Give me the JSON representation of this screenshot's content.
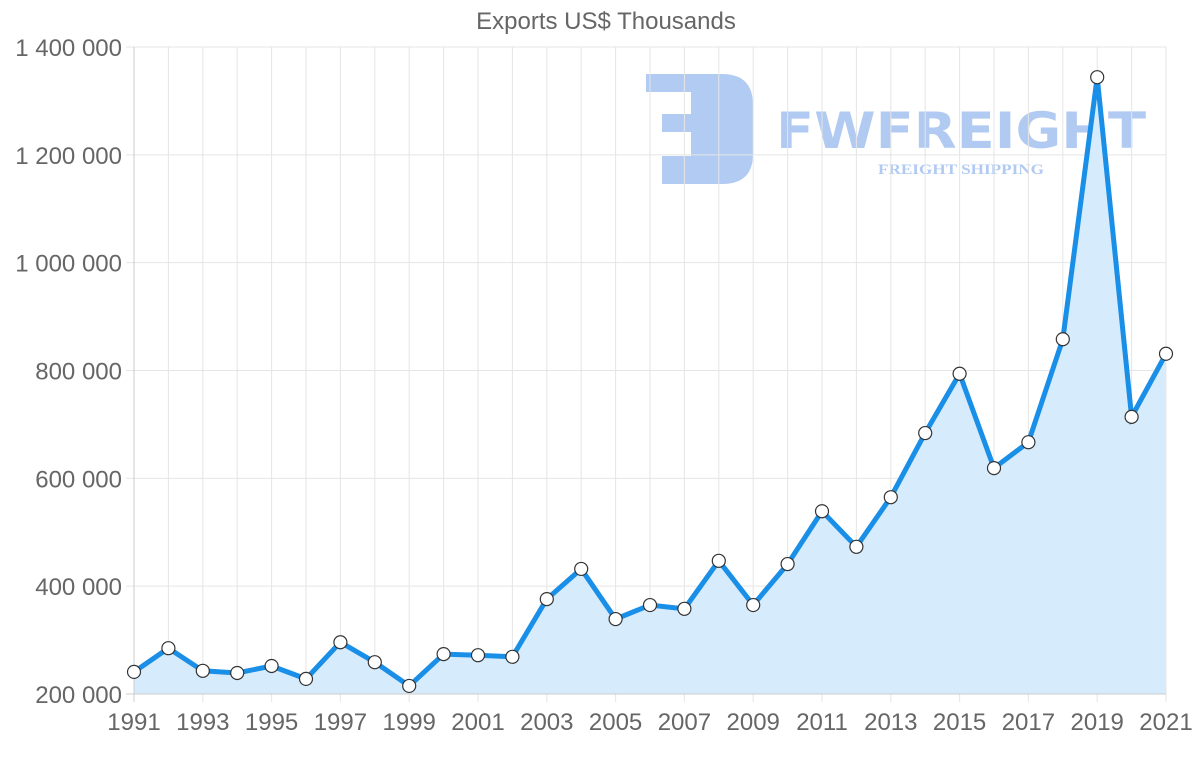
{
  "chart_data": {
    "type": "area",
    "title": "Exports US$ Thousands",
    "xlabel": "",
    "ylabel": "",
    "ylim": [
      200000,
      1400000
    ],
    "y_ticks": [
      "200 000",
      "400 000",
      "600 000",
      "800 000",
      "1 000 000",
      "1 200 000",
      "1 400 000"
    ],
    "y_tick_values": [
      200000,
      400000,
      600000,
      800000,
      1000000,
      1200000,
      1400000
    ],
    "x_tick_labels": [
      "1991",
      "1993",
      "1995",
      "1997",
      "1999",
      "2001",
      "2003",
      "2005",
      "2007",
      "2009",
      "2011",
      "2013",
      "2015",
      "2017",
      "2019",
      "2021"
    ],
    "categories": [
      "1991",
      "1992",
      "1993",
      "1994",
      "1995",
      "1996",
      "1997",
      "1998",
      "1999",
      "2000",
      "2001",
      "2002",
      "2003",
      "2004",
      "2005",
      "2006",
      "2007",
      "2008",
      "2009",
      "2010",
      "2011",
      "2012",
      "2013",
      "2014",
      "2015",
      "2016",
      "2017",
      "2018",
      "2019",
      "2020",
      "2021"
    ],
    "series": [
      {
        "name": "Exports US$ Thousands",
        "values": [
          241000,
          285000,
          243000,
          239000,
          252000,
          228000,
          296000,
          259000,
          215000,
          274000,
          272000,
          269000,
          376000,
          432000,
          339000,
          365000,
          358000,
          447000,
          365000,
          441000,
          539000,
          473000,
          565000,
          684000,
          794000,
          619000,
          667000,
          858000,
          1344000,
          714000,
          831000
        ]
      }
    ],
    "grid": true,
    "legend": "none",
    "colors": {
      "line": "#1a8fe8",
      "fill": "#d6ebfb",
      "point_fill": "#ffffff",
      "point_stroke": "#333333",
      "grid": "#e5e5e5"
    }
  },
  "watermark": {
    "brand": "FWFREIGHT",
    "tagline": "FREIGHT SHIPPING",
    "color": "#adc8f2"
  }
}
